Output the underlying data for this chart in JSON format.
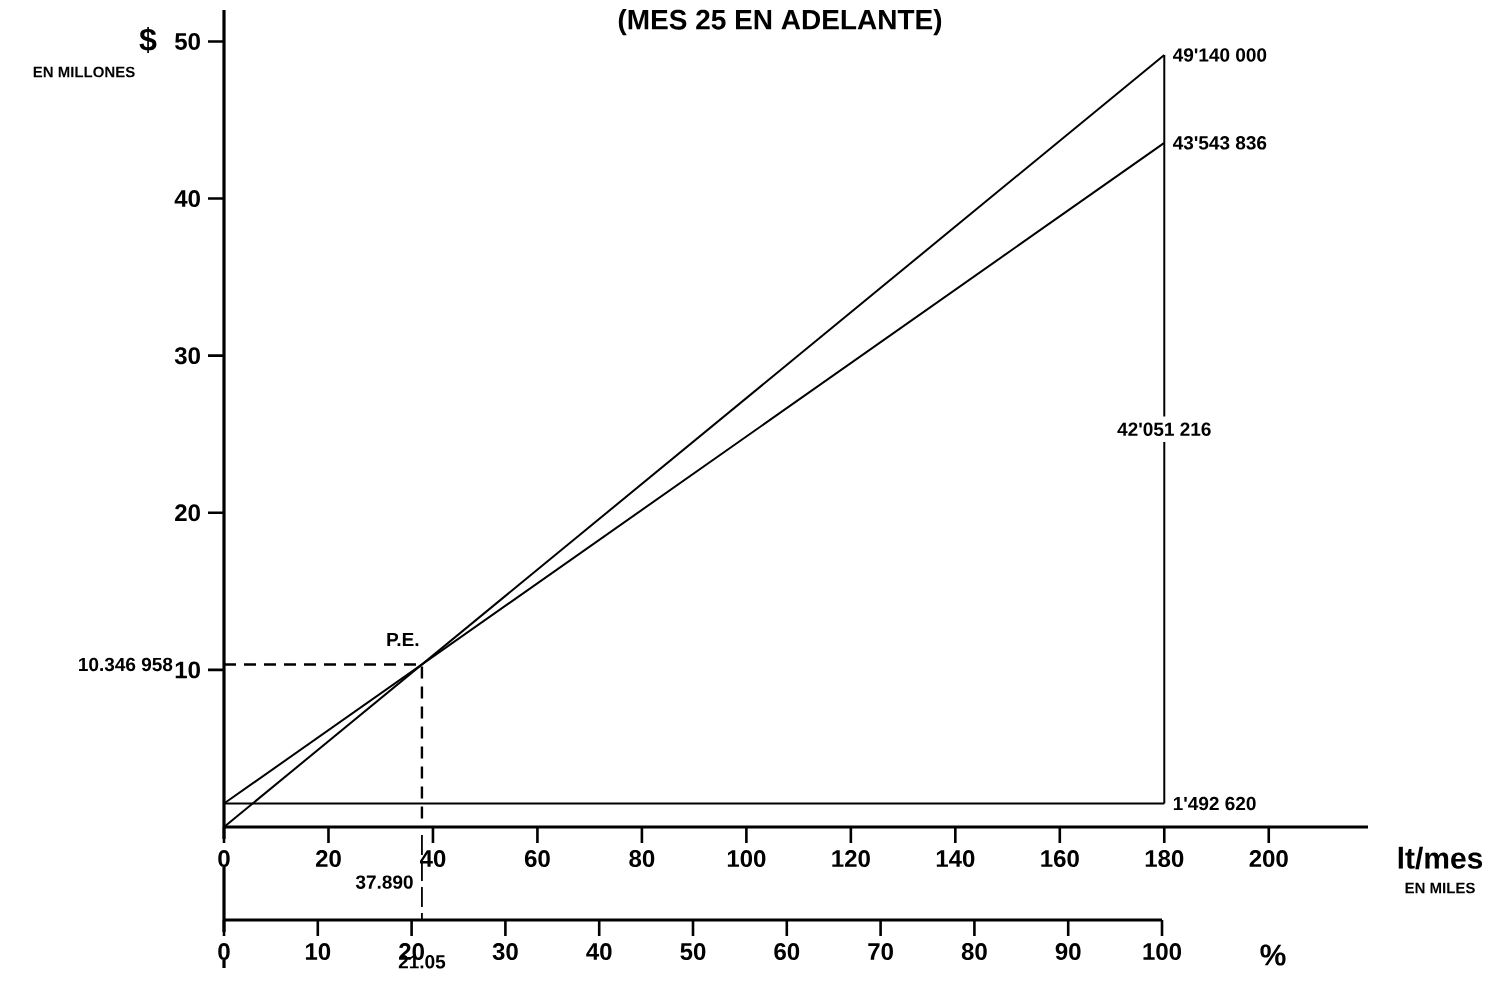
{
  "chart_data": {
    "type": "line",
    "title": "(MES 25 EN ADELANTE)",
    "xlabel": "lt/mes",
    "ylabel": "$",
    "x2label": "%",
    "xlim": [
      0,
      219
    ],
    "ylim": [
      0,
      52
    ],
    "xticks": [
      0,
      20,
      40,
      60,
      80,
      100,
      120,
      140,
      160,
      180,
      200
    ],
    "yticks": [
      10,
      20,
      30,
      40,
      50
    ],
    "x2lim": [
      0,
      100
    ],
    "x2ticks": [
      0,
      10,
      20,
      30,
      40,
      50,
      60,
      70,
      80,
      90,
      100
    ],
    "series": [
      {
        "color": "#000000",
        "x": [
          0,
          180
        ],
        "values": [
          0,
          49.14
        ]
      },
      {
        "color": "#000000",
        "x": [
          0,
          180
        ],
        "values": [
          1.49262,
          43.543836
        ]
      },
      {
        "color": "#000000",
        "x": [
          0,
          180
        ],
        "values": [
          1.49262,
          1.49262
        ]
      },
      {
        "color": "#000000",
        "x": [
          180,
          180
        ],
        "values": [
          1.49262,
          49.14
        ]
      },
      {
        "color": "#000000",
        "x": [
          0,
          37.89,
          37.89
        ],
        "values": [
          10.346958,
          10.346958,
          0
        ],
        "line_style": "dashed"
      }
    ],
    "annotations": [
      "49'140 000",
      "43'543 836",
      "42'051 216",
      "1'492 620",
      "10.346 958",
      "37.890",
      "P.E.",
      "21.05",
      "EN MILLONES",
      "EN MILES"
    ]
  }
}
